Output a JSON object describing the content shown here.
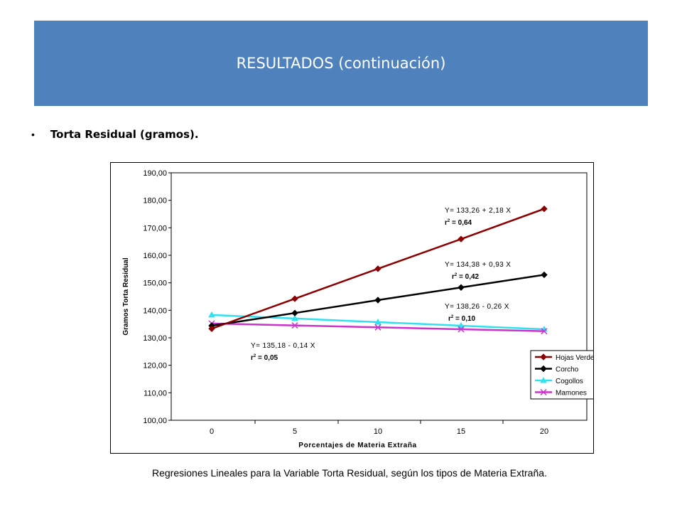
{
  "header": {
    "title": "RESULTADOS (continuación)"
  },
  "bullet": {
    "marker": "•",
    "text": "Torta Residual (gramos)."
  },
  "caption": "Regresiones Lineales para la Variable Torta  Residual, según los tipos de Materia  Extraña.",
  "colors": {
    "header_bg": "#4f81bd",
    "plot_border": "#000000"
  },
  "chart_data": {
    "type": "line",
    "xlabel": "Porcentajes de Materia Extraña",
    "ylabel": "Gramos Torta Residual",
    "x": [
      0,
      5,
      10,
      15,
      20
    ],
    "x_ticks": [
      "0",
      "5",
      "10",
      "15",
      "20"
    ],
    "ylim": [
      100,
      190
    ],
    "y_ticks": [
      "100,00",
      "110,00",
      "120,00",
      "130,00",
      "140,00",
      "150,00",
      "160,00",
      "170,00",
      "180,00",
      "190,00"
    ],
    "grid": false,
    "legend_position": "bottom-right",
    "series": [
      {
        "name": "Hojas Verdes",
        "color": "#8b0000",
        "marker": "diamond",
        "values": [
          133.3,
          144.2,
          155.1,
          165.9,
          176.9
        ],
        "equation": "Y= 133,26 + 2,18  X",
        "r2_label": "r",
        "r2_value": "= 0,64"
      },
      {
        "name": "Corcho",
        "color": "#000000",
        "marker": "diamond",
        "values": [
          134.4,
          139.0,
          143.7,
          148.3,
          152.9
        ],
        "equation": "Y= 134,38 + 0,93  X",
        "r2_label": "r",
        "r2_value": "= 0,42"
      },
      {
        "name": "Cogollos",
        "color": "#33e0f0",
        "marker": "triangle",
        "values": [
          138.3,
          137.0,
          135.7,
          134.4,
          133.1
        ],
        "equation": "Y= 138,26  - 0,26  X",
        "r2_label": "r",
        "r2_value": "= 0,10"
      },
      {
        "name": "Mamones",
        "color": "#cc33cc",
        "marker": "x",
        "values": [
          135.2,
          134.5,
          133.8,
          133.1,
          132.4
        ],
        "equation": "Y= 135,18 - 0,14  X",
        "r2_label": "r",
        "r2_value": "= 0,05"
      }
    ]
  }
}
